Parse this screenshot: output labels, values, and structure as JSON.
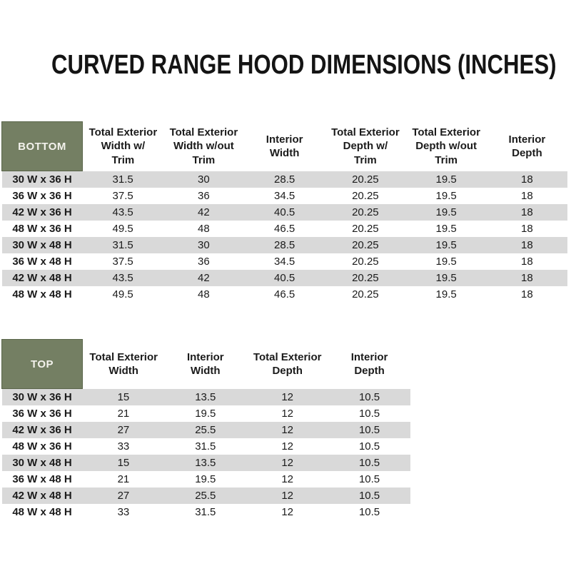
{
  "page": {
    "title": "CURVED RANGE HOOD DIMENSIONS (INCHES)"
  },
  "colors": {
    "header_cell_green": "#747f63",
    "header_cell_border": "#5a654a",
    "stripe_gray": "#d9d9d9",
    "row_white": "#ffffff",
    "text": "#1b1b1b",
    "corner_text": "#f3f2ec"
  },
  "chart_data": [
    {
      "type": "table",
      "name": "bottom",
      "corner_label": "BOTTOM",
      "columns": [
        [
          "Total Exterior",
          "Width w/",
          "Trim"
        ],
        [
          "Total Exterior",
          "Width w/out",
          "Trim"
        ],
        [
          "Interior",
          "Width"
        ],
        [
          "Total Exterior",
          "Depth w/",
          "Trim"
        ],
        [
          "Total Exterior",
          "Depth w/out",
          "Trim"
        ],
        [
          "Interior",
          "Depth"
        ]
      ],
      "rows": [
        {
          "label": "30 W x 36 H",
          "values": [
            31.5,
            30,
            28.5,
            20.25,
            19.5,
            18
          ]
        },
        {
          "label": "36 W x 36 H",
          "values": [
            37.5,
            36,
            34.5,
            20.25,
            19.5,
            18
          ]
        },
        {
          "label": "42 W x 36 H",
          "values": [
            43.5,
            42,
            40.5,
            20.25,
            19.5,
            18
          ]
        },
        {
          "label": "48 W x 36 H",
          "values": [
            49.5,
            48,
            46.5,
            20.25,
            19.5,
            18
          ]
        },
        {
          "label": "30 W x 48 H",
          "values": [
            31.5,
            30,
            28.5,
            20.25,
            19.5,
            18
          ]
        },
        {
          "label": "36 W x 48 H",
          "values": [
            37.5,
            36,
            34.5,
            20.25,
            19.5,
            18
          ]
        },
        {
          "label": "42 W x 48 H",
          "values": [
            43.5,
            42,
            40.5,
            20.25,
            19.5,
            18
          ]
        },
        {
          "label": "48 W x 48 H",
          "values": [
            49.5,
            48,
            46.5,
            20.25,
            19.5,
            18
          ]
        }
      ]
    },
    {
      "type": "table",
      "name": "top",
      "corner_label": "TOP",
      "columns": [
        [
          "Total Exterior",
          "Width"
        ],
        [
          "Interior",
          "Width"
        ],
        [
          "Total Exterior",
          "Depth"
        ],
        [
          "Interior",
          "Depth"
        ]
      ],
      "rows": [
        {
          "label": "30 W x 36 H",
          "values": [
            15,
            13.5,
            12,
            10.5
          ]
        },
        {
          "label": "36 W x 36 H",
          "values": [
            21,
            19.5,
            12,
            10.5
          ]
        },
        {
          "label": "42 W x 36 H",
          "values": [
            27,
            25.5,
            12,
            10.5
          ]
        },
        {
          "label": "48 W x 36 H",
          "values": [
            33,
            31.5,
            12,
            10.5
          ]
        },
        {
          "label": "30 W x 48 H",
          "values": [
            15,
            13.5,
            12,
            10.5
          ]
        },
        {
          "label": "36 W x 48 H",
          "values": [
            21,
            19.5,
            12,
            10.5
          ]
        },
        {
          "label": "42 W x 48 H",
          "values": [
            27,
            25.5,
            12,
            10.5
          ]
        },
        {
          "label": "48 W x 48 H",
          "values": [
            33,
            31.5,
            12,
            10.5
          ]
        }
      ]
    }
  ]
}
